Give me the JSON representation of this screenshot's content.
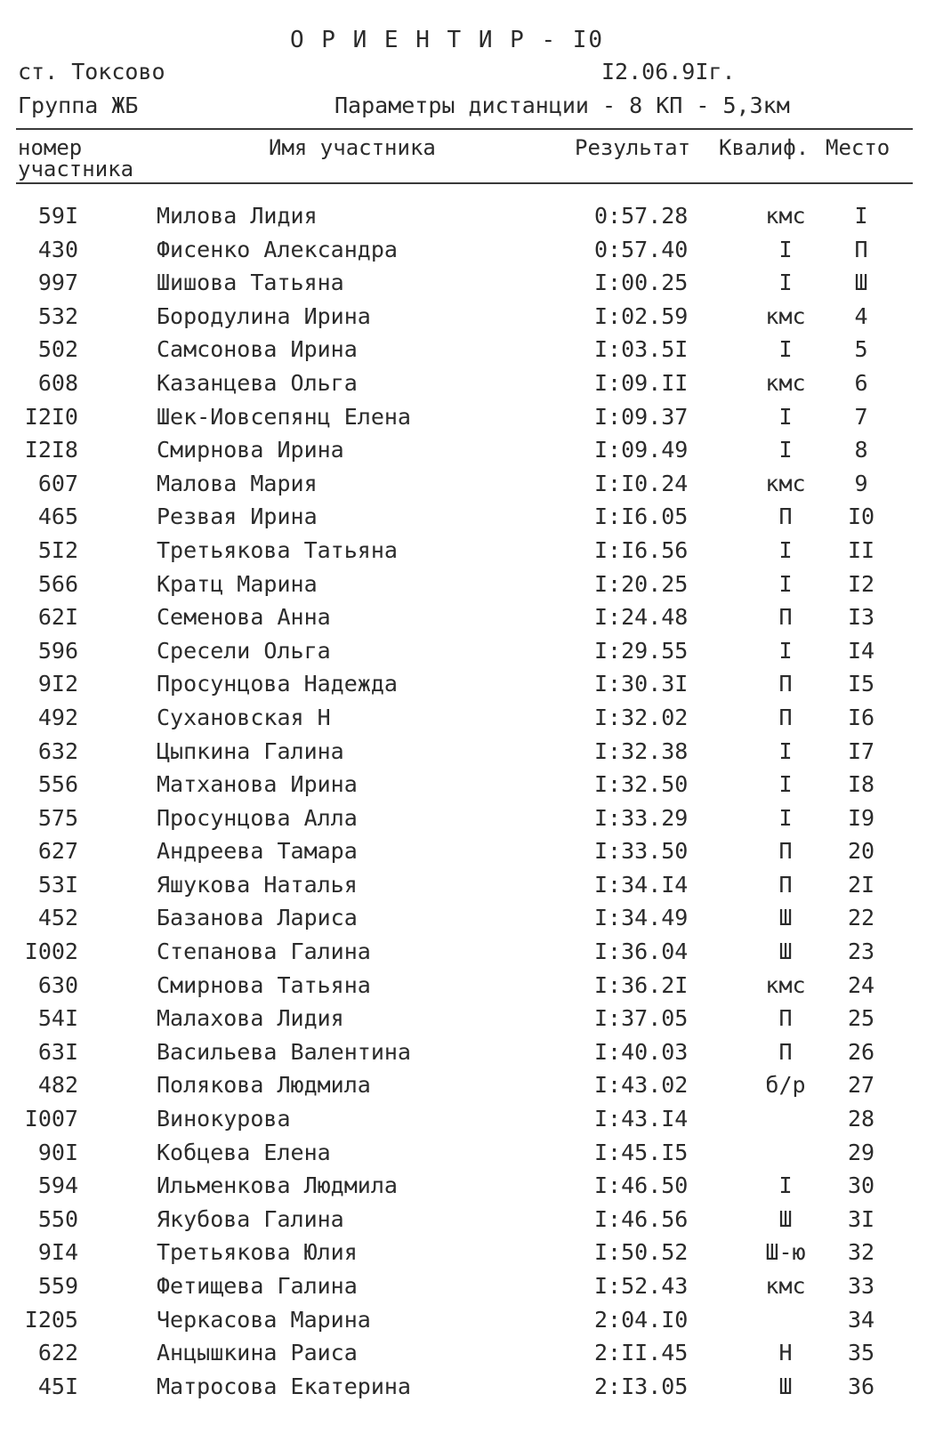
{
  "title": "О Р И Е Н Т И Р - I0",
  "header": {
    "location": "ст. Токсово",
    "date": "I2.06.9Iг.",
    "group": "Группа ЖБ",
    "params": "Параметры дистанции - 8 КП - 5,3км"
  },
  "columns": {
    "number_line1": "номер",
    "number_line2": "участника",
    "name": "Имя участника",
    "result": "Результат",
    "qualification": "Квалиф.",
    "place": "Место"
  },
  "rows": [
    {
      "num": "59I",
      "name": "Милова Лидия",
      "result": "0:57.28",
      "qual": "кмс",
      "place": "I"
    },
    {
      "num": "430",
      "name": "Фисенко Александра",
      "result": "0:57.40",
      "qual": "I",
      "place": "П"
    },
    {
      "num": "997",
      "name": "Шишова Татьяна",
      "result": "I:00.25",
      "qual": "I",
      "place": "Ш"
    },
    {
      "num": "532",
      "name": "Бородулина Ирина",
      "result": "I:02.59",
      "qual": "кмс",
      "place": "4"
    },
    {
      "num": "502",
      "name": "Самсонова Ирина",
      "result": "I:03.5I",
      "qual": "I",
      "place": "5"
    },
    {
      "num": "608",
      "name": "Казанцева Ольга",
      "result": "I:09.II",
      "qual": "кмс",
      "place": "6"
    },
    {
      "num": "I2I0",
      "name": "Шек-Иовсепянц Елена",
      "result": "I:09.37",
      "qual": "I",
      "place": "7"
    },
    {
      "num": "I2I8",
      "name": "Смирнова Ирина",
      "result": "I:09.49",
      "qual": "I",
      "place": "8"
    },
    {
      "num": "607",
      "name": "Малова Мария",
      "result": "I:I0.24",
      "qual": "кмс",
      "place": "9"
    },
    {
      "num": "465",
      "name": "Резвая Ирина",
      "result": "I:I6.05",
      "qual": "П",
      "place": "I0"
    },
    {
      "num": "5I2",
      "name": "Третьякова Татьяна",
      "result": "I:I6.56",
      "qual": "I",
      "place": "II"
    },
    {
      "num": "566",
      "name": "Кратц Марина",
      "result": "I:20.25",
      "qual": "I",
      "place": "I2"
    },
    {
      "num": "62I",
      "name": "Семенова Анна",
      "result": "I:24.48",
      "qual": "П",
      "place": "I3"
    },
    {
      "num": "596",
      "name": "Сресели Ольга",
      "result": "I:29.55",
      "qual": "I",
      "place": "I4"
    },
    {
      "num": "9I2",
      "name": "Просунцова Надежда",
      "result": "I:30.3I",
      "qual": "П",
      "place": "I5"
    },
    {
      "num": "492",
      "name": "Сухановская Н",
      "result": "I:32.02",
      "qual": "П",
      "place": "I6"
    },
    {
      "num": "632",
      "name": "Цыпкина Галина",
      "result": "I:32.38",
      "qual": "I",
      "place": "I7"
    },
    {
      "num": "556",
      "name": "Матханова Ирина",
      "result": "I:32.50",
      "qual": "I",
      "place": "I8"
    },
    {
      "num": "575",
      "name": "Просунцова Алла",
      "result": "I:33.29",
      "qual": "I",
      "place": "I9"
    },
    {
      "num": "627",
      "name": "Андреева Тамара",
      "result": "I:33.50",
      "qual": "П",
      "place": "20"
    },
    {
      "num": "53I",
      "name": "Яшукова Наталья",
      "result": "I:34.I4",
      "qual": "П",
      "place": "2I"
    },
    {
      "num": "452",
      "name": "Базанова Лариса",
      "result": "I:34.49",
      "qual": "Ш",
      "place": "22"
    },
    {
      "num": "I002",
      "name": "Степанова Галина",
      "result": "I:36.04",
      "qual": "Ш",
      "place": "23"
    },
    {
      "num": "630",
      "name": "Смирнова Татьяна",
      "result": "I:36.2I",
      "qual": "кмс",
      "place": "24"
    },
    {
      "num": "54I",
      "name": "Малахова Лидия",
      "result": "I:37.05",
      "qual": "П",
      "place": "25"
    },
    {
      "num": "63I",
      "name": "Васильева Валентина",
      "result": "I:40.03",
      "qual": "П",
      "place": "26"
    },
    {
      "num": "482",
      "name": "Полякова Людмила",
      "result": "I:43.02",
      "qual": "б/р",
      "place": "27"
    },
    {
      "num": "I007",
      "name": "Винокурова",
      "result": "I:43.I4",
      "qual": "",
      "place": "28"
    },
    {
      "num": "90I",
      "name": "Кобцева Елена",
      "result": "I:45.I5",
      "qual": "",
      "place": "29"
    },
    {
      "num": "594",
      "name": "Ильменкова Людмила",
      "result": "I:46.50",
      "qual": "I",
      "place": "30"
    },
    {
      "num": "550",
      "name": "Якубова Галина",
      "result": "I:46.56",
      "qual": "Ш",
      "place": "3I"
    },
    {
      "num": "9I4",
      "name": "Третьякова Юлия",
      "result": "I:50.52",
      "qual": "Ш-ю",
      "place": "32"
    },
    {
      "num": "559",
      "name": "Фетищева Галина",
      "result": "I:52.43",
      "qual": "кмс",
      "place": "33"
    },
    {
      "num": "I205",
      "name": "Черкасова Марина",
      "result": "2:04.I0",
      "qual": "",
      "place": "34"
    },
    {
      "num": "622",
      "name": "Анцышкина Раиса",
      "result": "2:II.45",
      "qual": "Н",
      "place": "35"
    },
    {
      "num": "45I",
      "name": "Матросова Екатерина",
      "result": "2:I3.05",
      "qual": "Ш",
      "place": "36"
    }
  ]
}
